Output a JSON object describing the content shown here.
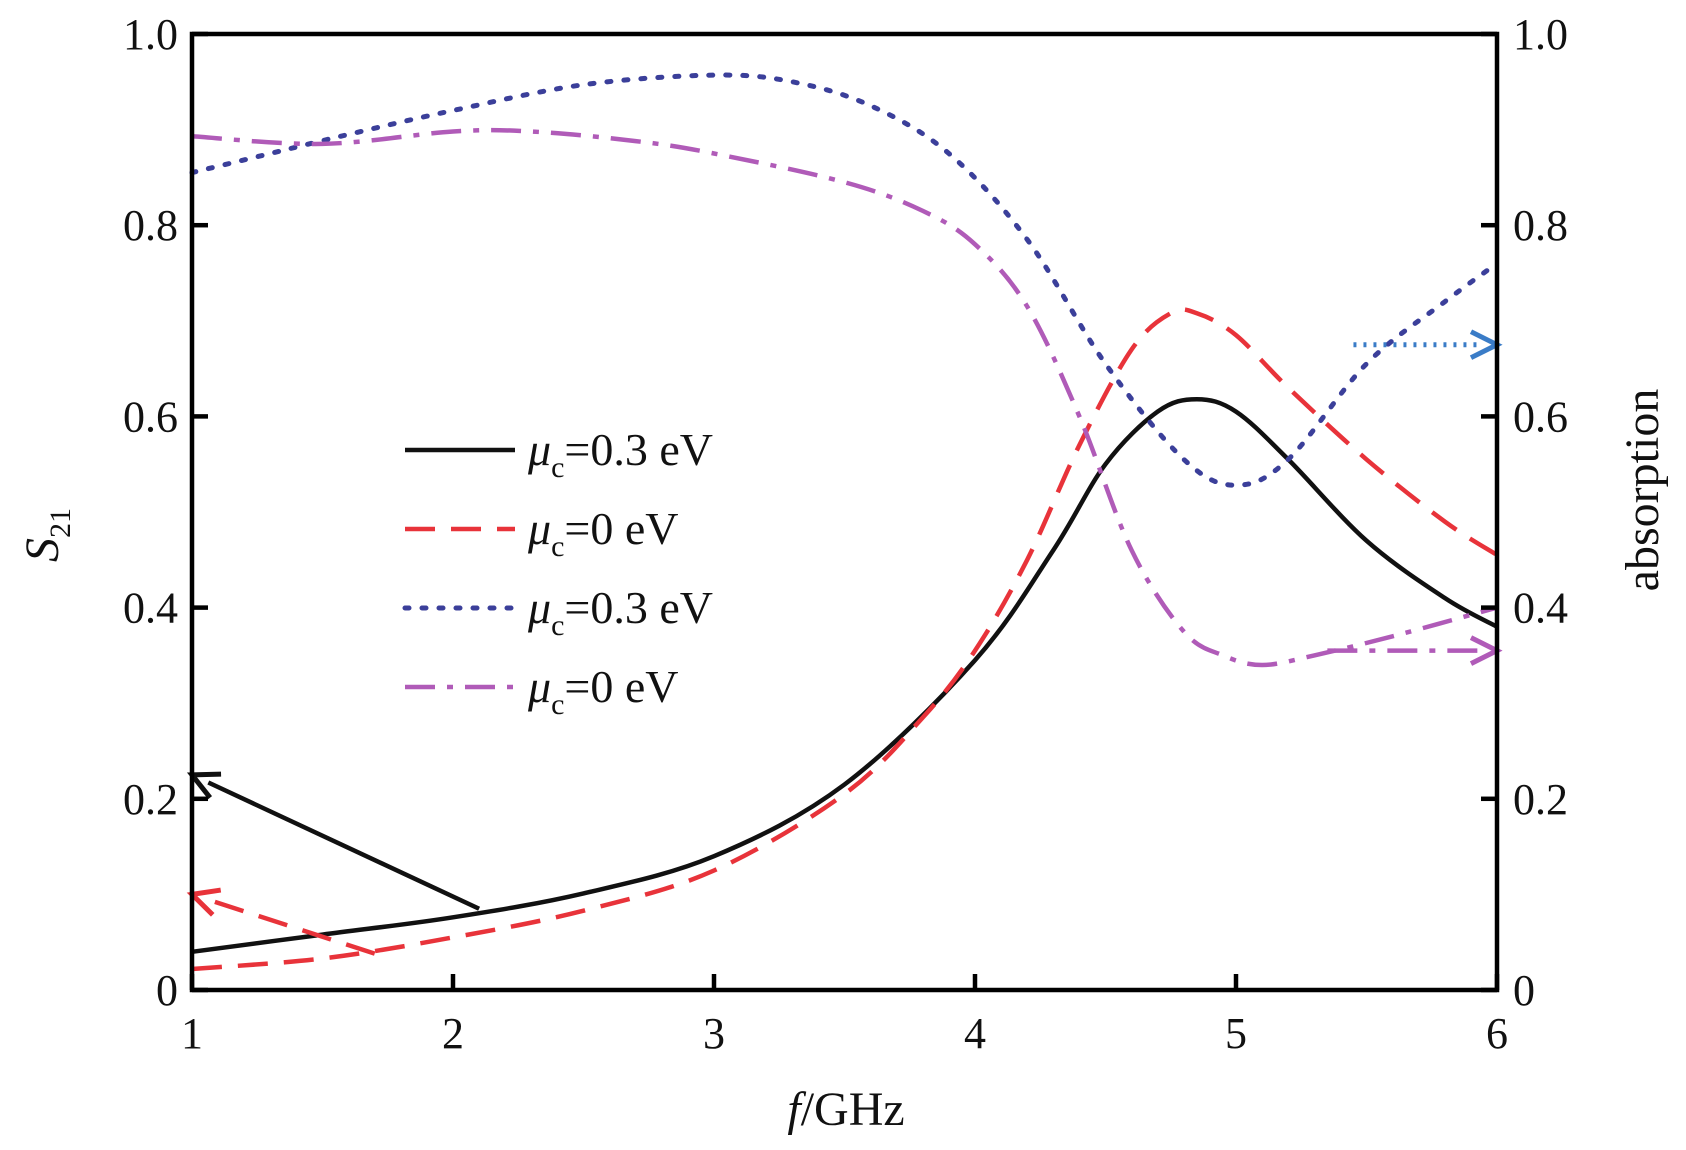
{
  "chart_data": {
    "type": "line",
    "xlabel_italic": "f",
    "xlabel_rest": "/GHz",
    "ylabel_main": "S",
    "ylabel_sub": "21",
    "y2label": "absorption",
    "xlim": [
      1,
      6
    ],
    "ylim": [
      0,
      1.0
    ],
    "y2lim": [
      0,
      1.0
    ],
    "x_ticks": [
      "1",
      "2",
      "3",
      "4",
      "5",
      "6"
    ],
    "y_ticks": [
      "0",
      "0.2",
      "0.4",
      "0.6",
      "0.8",
      "1.0"
    ],
    "y2_ticks": [
      "0",
      "0.2",
      "0.4",
      "0.6",
      "0.8",
      "1.0"
    ],
    "grid": false,
    "legend_position": "center-left",
    "series": [
      {
        "name": "μc=0.3 eV",
        "axis": "left",
        "style": "solid",
        "color": "#111111",
        "x": [
          1.0,
          1.5,
          2.0,
          2.5,
          3.0,
          3.5,
          4.0,
          4.3,
          4.5,
          4.7,
          4.85,
          5.0,
          5.2,
          5.5,
          5.8,
          6.0
        ],
        "y": [
          0.04,
          0.058,
          0.076,
          0.101,
          0.14,
          0.215,
          0.345,
          0.46,
          0.55,
          0.605,
          0.618,
          0.605,
          0.555,
          0.47,
          0.41,
          0.38
        ]
      },
      {
        "name": "μc=0 eV",
        "axis": "left",
        "style": "dashed",
        "color": "#e8333a",
        "x": [
          1.0,
          1.5,
          2.0,
          2.5,
          3.0,
          3.5,
          3.8,
          4.0,
          4.2,
          4.4,
          4.6,
          4.75,
          4.85,
          5.0,
          5.2,
          5.5,
          5.8,
          6.0
        ],
        "y": [
          0.022,
          0.033,
          0.055,
          0.083,
          0.125,
          0.205,
          0.285,
          0.355,
          0.45,
          0.57,
          0.67,
          0.708,
          0.708,
          0.685,
          0.63,
          0.555,
          0.49,
          0.455
        ]
      },
      {
        "name": "μc=0.3 eV",
        "axis": "right",
        "style": "dotted",
        "color": "#3b3f9a",
        "x": [
          1.0,
          1.3,
          1.6,
          2.0,
          2.5,
          3.0,
          3.3,
          3.6,
          3.9,
          4.2,
          4.5,
          4.8,
          5.0,
          5.2,
          5.5,
          5.8,
          6.0
        ],
        "y": [
          0.855,
          0.875,
          0.895,
          0.92,
          0.947,
          0.957,
          0.95,
          0.925,
          0.875,
          0.785,
          0.655,
          0.555,
          0.528,
          0.555,
          0.655,
          0.72,
          0.76
        ]
      },
      {
        "name": "μc=0 eV",
        "axis": "right",
        "style": "dashdot",
        "color": "#b05bb8",
        "x": [
          1.0,
          1.5,
          2.0,
          2.3,
          2.7,
          3.0,
          3.5,
          3.8,
          4.0,
          4.2,
          4.4,
          4.6,
          4.8,
          4.95,
          5.1,
          5.3,
          5.6,
          6.0
        ],
        "y": [
          0.893,
          0.885,
          0.898,
          0.898,
          0.888,
          0.875,
          0.845,
          0.815,
          0.78,
          0.715,
          0.6,
          0.46,
          0.375,
          0.35,
          0.34,
          0.35,
          0.37,
          0.4
        ]
      }
    ],
    "legend": [
      {
        "mu": "μ",
        "sub": "c",
        "value": "=0.3 eV",
        "style": "solid",
        "color": "#111111"
      },
      {
        "mu": "μ",
        "sub": "c",
        "value": "=0 eV",
        "style": "dashed",
        "color": "#e8333a"
      },
      {
        "mu": "μ",
        "sub": "c",
        "value": "=0.3 eV",
        "style": "dotted",
        "color": "#3b3f9a"
      },
      {
        "mu": "μ",
        "sub": "c",
        "value": "=0 eV",
        "style": "dashdot",
        "color": "#b05bb8"
      }
    ],
    "annotations": [
      {
        "kind": "arrow",
        "target_axis": "left",
        "style": "solid",
        "color": "#111111",
        "from": [
          2.1,
          0.085
        ],
        "to": [
          1.0,
          0.225
        ]
      },
      {
        "kind": "arrow",
        "target_axis": "left",
        "style": "dashed",
        "color": "#e8333a",
        "from": [
          1.7,
          0.038
        ],
        "to": [
          1.0,
          0.1
        ]
      },
      {
        "kind": "arrow",
        "target_axis": "right",
        "style": "dotted",
        "color": "#3a7cc7",
        "from": [
          5.45,
          0.675
        ],
        "to": [
          6.0,
          0.675
        ]
      },
      {
        "kind": "arrow",
        "target_axis": "right",
        "style": "dashdot",
        "color": "#b05bb8",
        "from": [
          5.35,
          0.355
        ],
        "to": [
          6.0,
          0.355
        ]
      }
    ]
  }
}
